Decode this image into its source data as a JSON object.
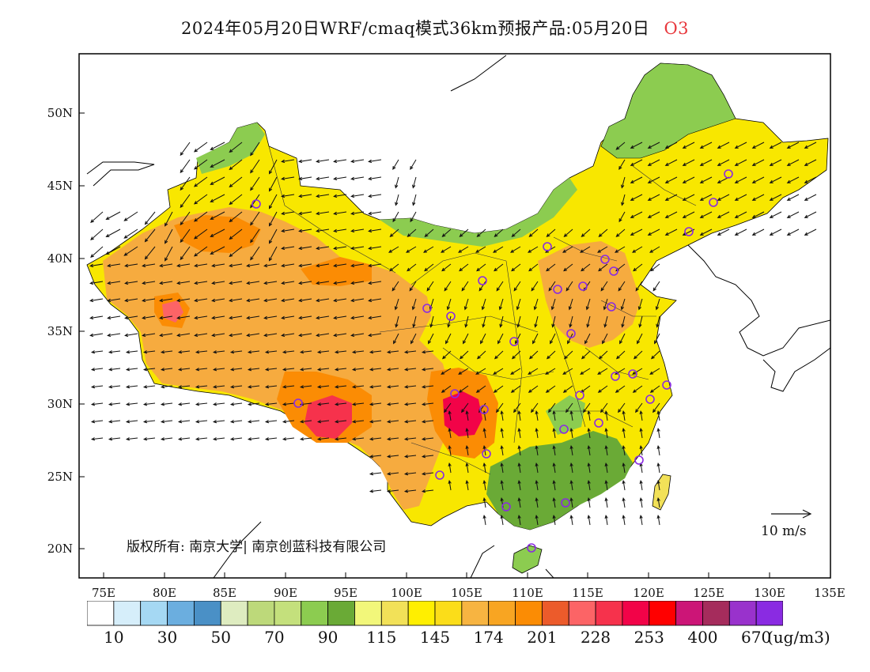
{
  "title": {
    "text": "2024年05月20日WRF/cmaq模式36km预报产品:05月20日",
    "species": "O3",
    "species_color": "#e8383d"
  },
  "map": {
    "lon_range": [
      73,
      135
    ],
    "lat_range": [
      18,
      54
    ],
    "lon_ticks": [
      "75E",
      "80E",
      "85E",
      "90E",
      "95E",
      "100E",
      "105E",
      "110E",
      "115E",
      "120E",
      "125E",
      "130E",
      "135E"
    ],
    "lat_ticks": [
      "20N",
      "25N",
      "30N",
      "35N",
      "40N",
      "45N",
      "50N"
    ],
    "copyright": "版权所有: 南京大学| 南京创蓝科技有限公司",
    "wind_ref_label": "10 m/s",
    "station_marker_color": "#8a2be2"
  },
  "colorbar": {
    "colors": [
      "#ffffff",
      "#d6eefa",
      "#a5d8f3",
      "#6baedf",
      "#4a90c6",
      "#deecc0",
      "#bdd97a",
      "#c4e07c",
      "#8ccc50",
      "#6aaa36",
      "#f2f77a",
      "#f2e158",
      "#ffef00",
      "#fbdd19",
      "#f7b441",
      "#f8a522",
      "#fb8c04",
      "#ec5b2b",
      "#fc6466",
      "#f6324c",
      "#f20348",
      "#ff0000",
      "#cc1577",
      "#a52c5c",
      "#9932cc",
      "#8a2be2"
    ],
    "labels": [
      "10",
      "30",
      "50",
      "70",
      "90",
      "115",
      "145",
      "174",
      "201",
      "228",
      "253",
      "400",
      "670"
    ],
    "unit": "(ug/m3)"
  }
}
